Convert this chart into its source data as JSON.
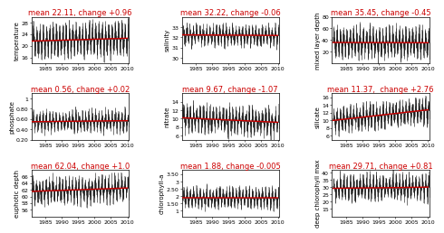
{
  "panels": [
    {
      "title": "mean 22.11, change +0.96",
      "ylabel": "temperature",
      "mean": 22.11,
      "change": 0.96,
      "ylim": [
        14.0,
        30.0
      ],
      "yticks": [
        16.0,
        20.0,
        24.0,
        28.0
      ],
      "amplitude": 5.5,
      "noise": 1.0,
      "trend_sign": 1,
      "phase": 0.0
    },
    {
      "title": "mean 32.22, change -0.06",
      "ylabel": "salinity",
      "mean": 32.22,
      "change": -0.06,
      "ylim": [
        29.5,
        34.0
      ],
      "yticks": [
        30.0,
        31.0,
        32.0,
        33.0
      ],
      "amplitude": 0.9,
      "noise": 0.25,
      "trend_sign": -1,
      "phase": 0.3
    },
    {
      "title": "mean 35.45, change -0.45",
      "ylabel": "mixed layer depth",
      "mean": 35.45,
      "change": -0.45,
      "ylim": [
        0,
        80
      ],
      "yticks": [
        20,
        40,
        60,
        80
      ],
      "amplitude": 25.0,
      "noise": 5.0,
      "trend_sign": -1,
      "phase": 0.5
    },
    {
      "title": "mean 0.56, change +0.02",
      "ylabel": "phosphate",
      "mean": 0.56,
      "change": 0.02,
      "ylim": [
        0.2,
        1.1
      ],
      "yticks": [
        0.2,
        0.4,
        0.6,
        0.8,
        1.0
      ],
      "amplitude": 0.18,
      "noise": 0.05,
      "trend_sign": 1,
      "phase": 0.2
    },
    {
      "title": "mean 9.67, change -1.07",
      "ylabel": "nitrate",
      "mean": 9.67,
      "change": -1.07,
      "ylim": [
        5.0,
        16.0
      ],
      "yticks": [
        6.0,
        8.0,
        10.0,
        12.0,
        14.0
      ],
      "amplitude": 2.8,
      "noise": 0.8,
      "trend_sign": -1,
      "phase": 0.1
    },
    {
      "title": "mean 11.37,  change +2.76",
      "ylabel": "silicate",
      "mean": 11.37,
      "change": 2.76,
      "ylim": [
        5.0,
        17.0
      ],
      "yticks": [
        6.0,
        8.0,
        10.0,
        12.0,
        14.0,
        16.0
      ],
      "amplitude": 3.0,
      "noise": 0.8,
      "trend_sign": 1,
      "phase": 0.4
    },
    {
      "title": "mean 62.04, change +1.0",
      "ylabel": "euphotic depth",
      "mean": 62.04,
      "change": 1.0,
      "ylim": [
        54.0,
        68.0
      ],
      "yticks": [
        56.0,
        58.0,
        60.0,
        62.0,
        64.0,
        66.0
      ],
      "amplitude": 3.5,
      "noise": 1.0,
      "trend_sign": 1,
      "phase": 0.6
    },
    {
      "title": "mean 1.88, change -0.005",
      "ylabel": "chlorophyll-a",
      "mean": 1.88,
      "change": -0.005,
      "ylim": [
        0.6,
        3.8
      ],
      "yticks": [
        1.0,
        1.5,
        2.0,
        2.5,
        3.0,
        3.5
      ],
      "amplitude": 0.65,
      "noise": 0.15,
      "trend_sign": -1,
      "phase": 0.0
    },
    {
      "title": "mean 29.71, change +0.81",
      "ylabel": "deep chlorophyll max",
      "mean": 29.71,
      "change": 0.81,
      "ylim": [
        10,
        42
      ],
      "yticks": [
        15,
        20,
        25,
        30,
        35,
        40
      ],
      "amplitude": 8.0,
      "noise": 2.0,
      "trend_sign": 1,
      "phase": 0.3
    }
  ],
  "xstart": 1981,
  "xend": 2010,
  "xticks": [
    1985,
    1990,
    1995,
    2000,
    2005,
    2010
  ],
  "bar_color": "#111111",
  "bar_fill_color": "#aaaaaa",
  "trend_color": "#cc0000",
  "title_color": "#cc0000",
  "background": "#ffffff",
  "title_fontsize": 6.0,
  "ylabel_fontsize": 5.0,
  "tick_fontsize": 4.5
}
